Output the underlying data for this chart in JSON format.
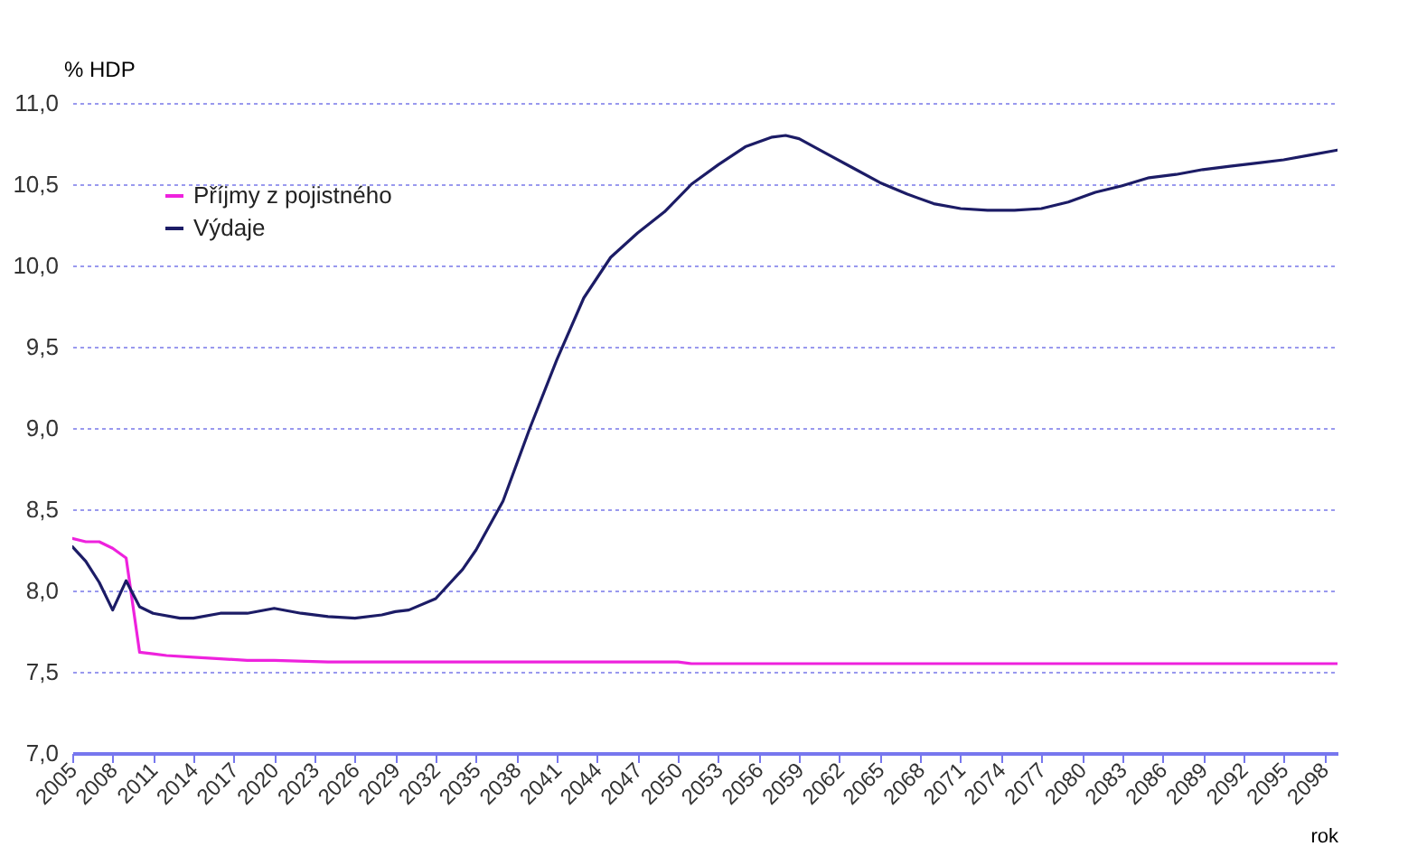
{
  "chart_data": {
    "type": "line",
    "ylabel": "% HDP",
    "xlabel": "rok",
    "xlim": [
      2005,
      2099
    ],
    "xticks": [
      2005,
      2008,
      2011,
      2014,
      2017,
      2020,
      2023,
      2026,
      2029,
      2032,
      2035,
      2038,
      2041,
      2044,
      2047,
      2050,
      2053,
      2056,
      2059,
      2062,
      2065,
      2068,
      2071,
      2074,
      2077,
      2080,
      2083,
      2086,
      2089,
      2092,
      2095,
      2098
    ],
    "ylim": [
      7,
      11
    ],
    "yticks": [
      {
        "value": 7,
        "label": "7,0"
      },
      {
        "value": 7.5,
        "label": "7,5"
      },
      {
        "value": 8,
        "label": "8,0"
      },
      {
        "value": 8.5,
        "label": "8,5"
      },
      {
        "value": 9,
        "label": "9,0"
      },
      {
        "value": 9.5,
        "label": "9,5"
      },
      {
        "value": 10,
        "label": "10,0"
      },
      {
        "value": 10.5,
        "label": "10,5"
      },
      {
        "value": 11,
        "label": "11,0"
      }
    ],
    "grid": "y",
    "legend": "top left",
    "line_style": "solid",
    "series": [
      {
        "name": "Příjmy z pojistného",
        "color": "#ee22dd",
        "x": [
          2005,
          2006,
          2007,
          2008,
          2009,
          2010,
          2011,
          2012,
          2014,
          2016,
          2018,
          2020,
          2024,
          2050,
          2051,
          2099
        ],
        "values": [
          8.32,
          8.3,
          8.3,
          8.26,
          8.2,
          7.62,
          7.61,
          7.6,
          7.59,
          7.58,
          7.57,
          7.57,
          7.56,
          7.56,
          7.55,
          7.55
        ]
      },
      {
        "name": "Výdaje",
        "color": "#1c1c66",
        "x": [
          2005,
          2006,
          2007,
          2008,
          2009,
          2010,
          2011,
          2013,
          2014,
          2016,
          2018,
          2020,
          2022,
          2024,
          2026,
          2028,
          2029,
          2030,
          2032,
          2034,
          2035,
          2037,
          2039,
          2041,
          2043,
          2045,
          2047,
          2049,
          2051,
          2053,
          2055,
          2057,
          2058,
          2059,
          2061,
          2063,
          2065,
          2067,
          2069,
          2071,
          2073,
          2075,
          2077,
          2079,
          2081,
          2083,
          2085,
          2087,
          2089,
          2091,
          2093,
          2095,
          2097,
          2099
        ],
        "values": [
          8.27,
          8.18,
          8.05,
          7.88,
          8.06,
          7.9,
          7.86,
          7.83,
          7.83,
          7.86,
          7.86,
          7.89,
          7.86,
          7.84,
          7.83,
          7.85,
          7.87,
          7.88,
          7.95,
          8.13,
          8.25,
          8.55,
          9.0,
          9.42,
          9.8,
          10.05,
          10.2,
          10.33,
          10.5,
          10.62,
          10.73,
          10.79,
          10.8,
          10.78,
          10.69,
          10.6,
          10.51,
          10.44,
          10.38,
          10.35,
          10.34,
          10.34,
          10.35,
          10.39,
          10.45,
          10.49,
          10.54,
          10.56,
          10.59,
          10.61,
          10.63,
          10.65,
          10.68,
          10.71
        ]
      }
    ]
  }
}
